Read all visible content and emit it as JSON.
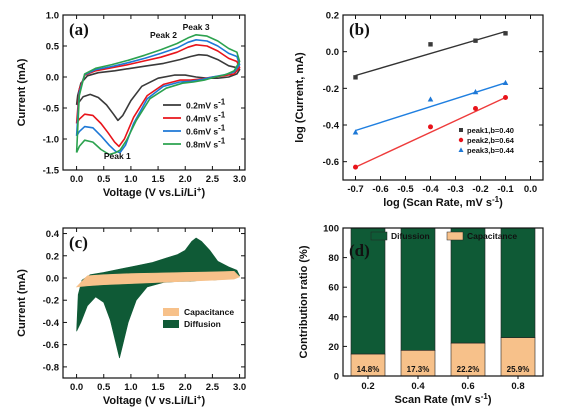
{
  "colors": {
    "black": "#3a3a3a",
    "red": "#e8141b",
    "blue": "#1e78d6",
    "green": "#2ca24f",
    "dark_green": "#0f5a36",
    "tan": "#f7c18a",
    "fit_black": "#333333",
    "fit_red": "#ee3b3b",
    "fit_blue": "#1f7fe0"
  },
  "chart_data": [
    {
      "panel": "(a)",
      "type": "line",
      "xlabel": "Voltage (V vs.Li/Li",
      "xlabel_sup": "+",
      "xlabel_end": ")",
      "ylabel": "Current (mA)",
      "xlim": [
        -0.25,
        3.1
      ],
      "ylim": [
        -1.5,
        1.0
      ],
      "xticks": [
        "0.0",
        "0.5",
        "1.0",
        "1.5",
        "2.0",
        "2.5",
        "3.0"
      ],
      "xtick_values": [
        0,
        0.5,
        1,
        1.5,
        2,
        2.5,
        3
      ],
      "yticks": [
        "-1.5",
        "-1.0",
        "-0.5",
        "0.0",
        "0.5",
        "1.0"
      ],
      "ytick_values": [
        -1.5,
        -1,
        -0.5,
        0,
        0.5,
        1
      ],
      "annotations": [
        {
          "text": "Peak 1",
          "x": 0.75,
          "y": -1.32
        },
        {
          "text": "Peak 2",
          "x": 1.6,
          "y": 0.63
        },
        {
          "text": "Peak 3",
          "x": 2.2,
          "y": 0.76
        }
      ],
      "legend_position": "right",
      "series": [
        {
          "name": "0.2mV s",
          "name_sup": "-1",
          "color_key": "black",
          "x": [
            0.0,
            0.05,
            0.12,
            0.25,
            0.4,
            0.55,
            0.68,
            0.76,
            0.85,
            1.0,
            1.2,
            1.5,
            1.8,
            2.0,
            2.2,
            2.4,
            2.6,
            2.8,
            2.95,
            3.0,
            2.95,
            2.8,
            2.6,
            2.4,
            2.25,
            2.1,
            1.9,
            1.6,
            1.3,
            1.0,
            0.7,
            0.4,
            0.2,
            0.08,
            0.02,
            0.0
          ],
          "y": [
            -0.45,
            -0.4,
            -0.32,
            -0.28,
            -0.33,
            -0.45,
            -0.6,
            -0.7,
            -0.62,
            -0.38,
            -0.15,
            -0.02,
            0.03,
            0.03,
            0.0,
            -0.02,
            -0.02,
            0.0,
            0.05,
            0.12,
            0.15,
            0.18,
            0.28,
            0.35,
            0.36,
            0.33,
            0.28,
            0.22,
            0.18,
            0.14,
            0.1,
            0.07,
            0.02,
            -0.1,
            -0.3,
            -0.45
          ]
        },
        {
          "name": "0.4mV s",
          "name_sup": "-1",
          "color_key": "red",
          "x": [
            0.0,
            0.05,
            0.15,
            0.3,
            0.45,
            0.58,
            0.7,
            0.78,
            0.88,
            1.05,
            1.3,
            1.6,
            1.9,
            2.1,
            2.3,
            2.5,
            2.7,
            2.9,
            3.0,
            2.95,
            2.8,
            2.6,
            2.4,
            2.2,
            2.05,
            1.85,
            1.55,
            1.25,
            0.95,
            0.65,
            0.35,
            0.15,
            0.05,
            0.0
          ],
          "y": [
            -0.75,
            -0.68,
            -0.6,
            -0.62,
            -0.75,
            -0.9,
            -1.05,
            -1.12,
            -1.0,
            -0.65,
            -0.3,
            -0.12,
            -0.05,
            -0.05,
            -0.03,
            0.0,
            0.02,
            0.05,
            0.15,
            0.25,
            0.3,
            0.42,
            0.5,
            0.52,
            0.48,
            0.4,
            0.32,
            0.26,
            0.2,
            0.15,
            0.1,
            0.03,
            -0.2,
            -0.75
          ]
        },
        {
          "name": "0.6mV s",
          "name_sup": "-1",
          "color_key": "blue",
          "x": [
            0.0,
            0.05,
            0.15,
            0.3,
            0.45,
            0.6,
            0.72,
            0.8,
            0.9,
            1.05,
            1.3,
            1.6,
            1.9,
            2.1,
            2.3,
            2.5,
            2.7,
            2.9,
            3.0,
            2.95,
            2.8,
            2.6,
            2.4,
            2.2,
            2.05,
            1.85,
            1.55,
            1.25,
            0.95,
            0.65,
            0.35,
            0.15,
            0.05,
            0.0
          ],
          "y": [
            -0.95,
            -0.88,
            -0.8,
            -0.82,
            -0.95,
            -1.1,
            -1.2,
            -1.22,
            -1.1,
            -0.75,
            -0.35,
            -0.15,
            -0.08,
            -0.07,
            -0.04,
            0.0,
            0.03,
            0.08,
            0.2,
            0.33,
            0.38,
            0.5,
            0.58,
            0.6,
            0.56,
            0.47,
            0.38,
            0.3,
            0.23,
            0.17,
            0.12,
            0.04,
            -0.25,
            -0.95
          ]
        },
        {
          "name": "0.8mV s",
          "name_sup": "-1",
          "color_key": "green",
          "x": [
            0.0,
            0.05,
            0.15,
            0.3,
            0.45,
            0.6,
            0.72,
            0.8,
            0.92,
            1.1,
            1.35,
            1.65,
            1.95,
            2.15,
            2.35,
            2.55,
            2.75,
            2.9,
            3.0,
            2.95,
            2.8,
            2.6,
            2.4,
            2.2,
            2.05,
            1.85,
            1.55,
            1.25,
            0.95,
            0.65,
            0.35,
            0.15,
            0.05,
            0.0
          ],
          "y": [
            -1.22,
            -1.12,
            -1.02,
            -1.05,
            -1.17,
            -1.25,
            -1.22,
            -1.18,
            -1.02,
            -0.7,
            -0.35,
            -0.18,
            -0.1,
            -0.08,
            -0.05,
            0.0,
            0.04,
            0.1,
            0.25,
            0.4,
            0.46,
            0.58,
            0.66,
            0.68,
            0.63,
            0.54,
            0.44,
            0.35,
            0.27,
            0.2,
            0.14,
            0.05,
            -0.3,
            -1.22
          ]
        }
      ]
    },
    {
      "panel": "(b)",
      "type": "scatter",
      "xlabel": "log (Scan Rate, mV s",
      "xlabel_sup": "-1",
      "xlabel_end": ")",
      "ylabel": "log (Current, mA)",
      "xlim": [
        -0.75,
        0.05
      ],
      "ylim": [
        -0.7,
        0.2
      ],
      "xticks": [
        "-0.7",
        "-0.6",
        "-0.5",
        "-0.4",
        "-0.3",
        "-0.2",
        "-0.1",
        "0.0"
      ],
      "xtick_values": [
        -0.7,
        -0.6,
        -0.5,
        -0.4,
        -0.3,
        -0.2,
        -0.1,
        0.0
      ],
      "yticks": [
        "-0.6",
        "-0.4",
        "-0.2",
        "0.0",
        "0.2"
      ],
      "ytick_values": [
        -0.6,
        -0.4,
        -0.2,
        0.0,
        0.2
      ],
      "legend_position": "bottom-right",
      "series": [
        {
          "name": "peak1,b=0.40",
          "color_key": "black",
          "fit_key": "fit_black",
          "marker": "square",
          "x": [
            -0.7,
            -0.4,
            -0.22,
            -0.1
          ],
          "y": [
            -0.14,
            0.04,
            0.06,
            0.1
          ],
          "fit": [
            [
              -0.7,
              -0.13
            ],
            [
              -0.1,
              0.11
            ]
          ]
        },
        {
          "name": "peak2,b=0.64",
          "color_key": "red",
          "fit_key": "fit_red",
          "marker": "circle",
          "x": [
            -0.7,
            -0.4,
            -0.22,
            -0.1
          ],
          "y": [
            -0.63,
            -0.41,
            -0.31,
            -0.25
          ],
          "fit": [
            [
              -0.7,
              -0.63
            ],
            [
              -0.1,
              -0.25
            ]
          ]
        },
        {
          "name": "peak3,b=0.44",
          "color_key": "blue",
          "fit_key": "fit_blue",
          "marker": "triangle",
          "x": [
            -0.7,
            -0.4,
            -0.22,
            -0.1
          ],
          "y": [
            -0.44,
            -0.26,
            -0.22,
            -0.17
          ],
          "fit": [
            [
              -0.7,
              -0.43
            ],
            [
              -0.1,
              -0.17
            ]
          ]
        }
      ]
    },
    {
      "panel": "(c)",
      "type": "area",
      "xlabel": "Voltage (V vs.Li/Li",
      "xlabel_sup": "+",
      "xlabel_end": ")",
      "ylabel": "Current (mA)",
      "xlim": [
        -0.25,
        3.1
      ],
      "ylim": [
        -0.9,
        0.45
      ],
      "xticks": [
        "0.0",
        "0.5",
        "1.0",
        "1.5",
        "2.0",
        "2.5",
        "3.0"
      ],
      "xtick_values": [
        0,
        0.5,
        1,
        1.5,
        2,
        2.5,
        3
      ],
      "yticks": [
        "-0.8",
        "-0.6",
        "-0.4",
        "-0.2",
        "0.0",
        "0.2",
        "0.4"
      ],
      "ytick_values": [
        -0.8,
        -0.6,
        -0.4,
        -0.2,
        0,
        0.2,
        0.4
      ],
      "legend_position": "bottom-right",
      "series": [
        {
          "name": "Diffusion",
          "color_key": "dark_green",
          "x": [
            0.0,
            0.08,
            0.2,
            0.35,
            0.5,
            0.62,
            0.72,
            0.79,
            0.85,
            0.95,
            1.1,
            1.3,
            1.6,
            1.9,
            2.1,
            2.3,
            2.5,
            2.7,
            2.9,
            3.0,
            2.95,
            2.8,
            2.6,
            2.45,
            2.3,
            2.2,
            2.12,
            2.0,
            1.85,
            1.65,
            1.4,
            1.1,
            0.8,
            0.5,
            0.25,
            0.1,
            0.03,
            0.0
          ],
          "y": [
            -0.48,
            -0.4,
            -0.25,
            -0.17,
            -0.22,
            -0.38,
            -0.58,
            -0.72,
            -0.6,
            -0.4,
            -0.2,
            -0.08,
            -0.04,
            -0.03,
            -0.03,
            -0.02,
            -0.02,
            -0.01,
            0.0,
            0.02,
            0.07,
            0.1,
            0.15,
            0.25,
            0.33,
            0.36,
            0.33,
            0.25,
            0.21,
            0.18,
            0.14,
            0.11,
            0.08,
            0.05,
            0.03,
            -0.02,
            -0.15,
            -0.48
          ]
        },
        {
          "name": "Capacitance",
          "color_key": "tan",
          "x": [
            0.0,
            0.2,
            0.5,
            1.0,
            1.5,
            2.0,
            2.5,
            2.9,
            3.0,
            2.9,
            2.5,
            2.0,
            1.5,
            1.0,
            0.5,
            0.2,
            0.0
          ],
          "y": [
            -0.08,
            -0.07,
            -0.06,
            -0.05,
            -0.04,
            -0.03,
            -0.02,
            -0.01,
            0.01,
            0.06,
            0.055,
            0.05,
            0.045,
            0.04,
            0.03,
            0.02,
            -0.08
          ]
        }
      ]
    },
    {
      "panel": "(d)",
      "type": "bar",
      "stacked": true,
      "xlabel": "Scan Rate (mV s",
      "xlabel_sup": "-1",
      "xlabel_end": ")",
      "ylabel": "Contribution ratio (%)",
      "ylim": [
        0,
        100
      ],
      "categories": [
        "0.2",
        "0.4",
        "0.6",
        "0.8"
      ],
      "yticks": [
        "0",
        "20",
        "40",
        "60",
        "80",
        "100"
      ],
      "ytick_values": [
        0,
        20,
        40,
        60,
        80,
        100
      ],
      "legend_position": "top",
      "series": [
        {
          "name": "Capacitance",
          "color_key": "tan",
          "values": [
            14.8,
            17.3,
            22.2,
            25.9
          ],
          "labels": [
            "14.8%",
            "17.3%",
            "22.2%",
            "25.9%"
          ]
        },
        {
          "name": "Difussion",
          "color_key": "dark_green",
          "values": [
            85.2,
            82.7,
            77.8,
            74.1
          ]
        }
      ]
    }
  ]
}
